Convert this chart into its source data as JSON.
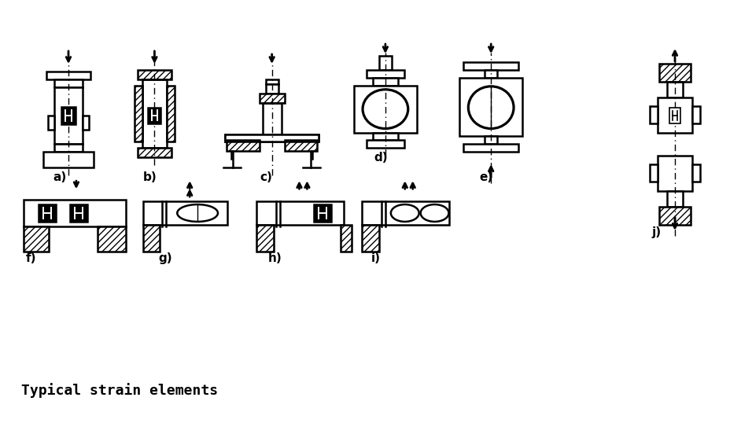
{
  "title": "Typical strain elements",
  "title_fontsize": 13,
  "background": "#ffffff",
  "labels": [
    "a)",
    "b)",
    "c)",
    "d)",
    "e)",
    "f)",
    "g)",
    "h)",
    "i)",
    "j)"
  ],
  "label_fontsize": 11,
  "line_color": "#000000",
  "lw": 1.8,
  "fig_width": 9.42,
  "fig_height": 5.38,
  "dpi": 100
}
